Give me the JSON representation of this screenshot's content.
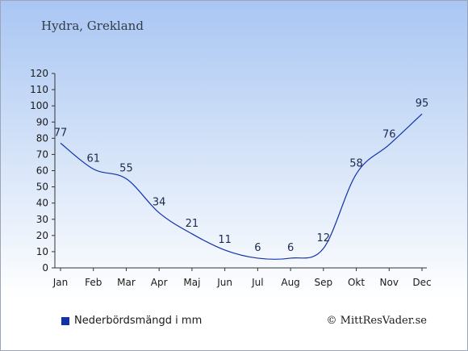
{
  "header": {
    "title": "Hydra, Grekland"
  },
  "legend": {
    "label": "Nederbördsmängd i mm",
    "color": "#1133aa"
  },
  "footer": {
    "copyright": "© MittResVader.se"
  },
  "chart_data": {
    "type": "line",
    "categories": [
      "Jan",
      "Feb",
      "Mar",
      "Apr",
      "Maj",
      "Jun",
      "Jul",
      "Aug",
      "Sep",
      "Okt",
      "Nov",
      "Dec"
    ],
    "series": [
      {
        "name": "Nederbördsmängd i mm",
        "values": [
          77,
          61,
          55,
          34,
          21,
          11,
          6,
          6,
          12,
          58,
          76,
          95
        ],
        "color": "#1133aa"
      }
    ],
    "ylim": [
      0,
      120
    ],
    "yticks": [
      0,
      10,
      20,
      30,
      40,
      50,
      60,
      70,
      80,
      90,
      100,
      110,
      120
    ],
    "grid": false,
    "legend": "bottom-left"
  }
}
